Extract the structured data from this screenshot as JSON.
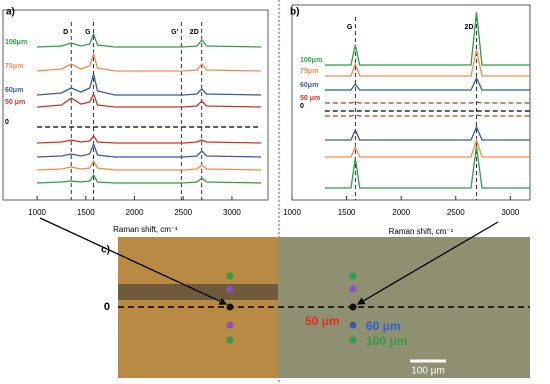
{
  "chart_data": [
    {
      "type": "line",
      "panel": "a)",
      "x_label": "Raman shift, cm⁻¹",
      "xlim": [
        650,
        3370
      ],
      "ylim": [
        0,
        19
      ],
      "xticks": [
        1000,
        1500,
        2000,
        2500,
        3000
      ],
      "annotations": [
        {
          "text": "D",
          "x": 1350
        },
        {
          "text": "G",
          "x": 1580
        },
        {
          "text": "G'",
          "x": 2480
        },
        {
          "text": "2D",
          "x": 2690
        }
      ],
      "x": [
        1000,
        1250,
        1350,
        1450,
        1540,
        1580,
        1620,
        1800,
        2500,
        2640,
        2690,
        2740,
        3300
      ],
      "series": [
        {
          "name": "100μm",
          "color": "#2e9e48",
          "values": [
            15.3,
            15.4,
            15.7,
            15.4,
            15.6,
            16.6,
            15.5,
            15.3,
            15.3,
            15.4,
            16.0,
            15.4,
            15.3
          ]
        },
        {
          "name": "75μm",
          "color": "#f08a4b",
          "values": [
            12.9,
            13.1,
            13.6,
            13.1,
            13.4,
            14.6,
            13.2,
            12.9,
            12.9,
            13.0,
            13.6,
            13.0,
            12.9
          ]
        },
        {
          "name": "60μm",
          "color": "#3a5a98",
          "values": [
            10.5,
            10.7,
            11.2,
            10.8,
            11.2,
            12.6,
            10.9,
            10.5,
            10.5,
            10.6,
            11.1,
            10.6,
            10.5
          ]
        },
        {
          "name": "50 μm",
          "color": "#d0302c",
          "values": [
            9.3,
            9.5,
            10.2,
            9.6,
            9.8,
            10.6,
            9.5,
            9.3,
            9.3,
            9.4,
            9.9,
            9.4,
            9.3
          ]
        },
        {
          "name": "0",
          "color": "#000000",
          "dashed": true,
          "values": [
            7.3,
            7.3,
            7.3,
            7.3,
            7.3,
            7.3,
            7.3,
            7.3,
            7.3,
            7.3,
            7.3,
            7.3,
            7.3
          ]
        },
        {
          "color": "#d0302c",
          "values": [
            5.7,
            5.8,
            6.0,
            5.8,
            5.9,
            6.4,
            5.8,
            5.7,
            5.7,
            5.8,
            6.0,
            5.8,
            5.7
          ]
        },
        {
          "color": "#3a5a98",
          "values": [
            4.3,
            4.4,
            4.6,
            4.4,
            4.6,
            5.6,
            4.5,
            4.3,
            4.3,
            4.4,
            4.9,
            4.4,
            4.3
          ]
        },
        {
          "color": "#f08a4b",
          "values": [
            3.0,
            3.1,
            3.3,
            3.1,
            3.2,
            3.9,
            3.2,
            3.0,
            3.0,
            3.1,
            3.5,
            3.1,
            3.0
          ]
        },
        {
          "color": "#2e9e48",
          "values": [
            1.7,
            1.8,
            1.9,
            1.8,
            1.9,
            2.5,
            1.8,
            1.7,
            1.7,
            1.8,
            2.2,
            1.8,
            1.7
          ]
        }
      ]
    },
    {
      "type": "line",
      "panel": "b)",
      "x_label": "Raman shift, cm⁻¹",
      "xlim": [
        1000,
        3180
      ],
      "ylim": [
        0,
        19.5
      ],
      "xticks": [
        1000,
        1500,
        2000,
        2500,
        3000
      ],
      "annotations": [
        {
          "text": "G",
          "x": 1580
        },
        {
          "text": "2D",
          "x": 2690
        }
      ],
      "x": [
        1300,
        1540,
        1580,
        1620,
        2640,
        2690,
        2740,
        3180
      ],
      "series": [
        {
          "name": "100μm",
          "color": "#2e9e48",
          "values": [
            13.5,
            13.5,
            15.5,
            13.5,
            13.5,
            18.8,
            13.5,
            13.5
          ]
        },
        {
          "name": "75μm",
          "color": "#f08a4b",
          "values": [
            12.4,
            12.4,
            13.6,
            12.4,
            12.4,
            15.0,
            12.4,
            12.4
          ]
        },
        {
          "name": "60μm",
          "color": "#3a5a98",
          "values": [
            11.0,
            11.0,
            11.6,
            11.0,
            11.0,
            12.2,
            11.0,
            11.0
          ]
        },
        {
          "name": "50 μm",
          "color": "#d0302c",
          "dashed": true,
          "values": [
            9.7,
            9.7,
            9.8,
            9.7,
            9.7,
            9.8,
            9.7,
            9.7
          ]
        },
        {
          "name": "0",
          "color": "#000000",
          "dashed": true,
          "values": [
            8.9,
            8.9,
            8.9,
            8.9,
            8.9,
            8.9,
            8.9,
            8.9
          ]
        },
        {
          "color": "#d0302c",
          "dashed": true,
          "values": [
            8.4,
            8.4,
            8.5,
            8.4,
            8.4,
            8.5,
            8.4,
            8.4
          ]
        },
        {
          "color": "#3a5a98",
          "values": [
            6.0,
            6.0,
            7.0,
            6.0,
            6.0,
            7.3,
            6.0,
            6.0
          ]
        },
        {
          "color": "#f08a4b",
          "values": [
            4.3,
            4.3,
            5.3,
            4.3,
            4.3,
            6.0,
            4.3,
            4.3
          ]
        },
        {
          "color": "#2e9e48",
          "values": [
            1.2,
            1.2,
            4.2,
            1.2,
            1.2,
            5.4,
            1.2,
            1.2
          ]
        }
      ]
    }
  ],
  "micrograph": {
    "panel": "c)",
    "zero": "0",
    "labels": [
      "50 μm",
      "60 μm",
      "100 μm"
    ],
    "scale_bar": "100 μm"
  }
}
